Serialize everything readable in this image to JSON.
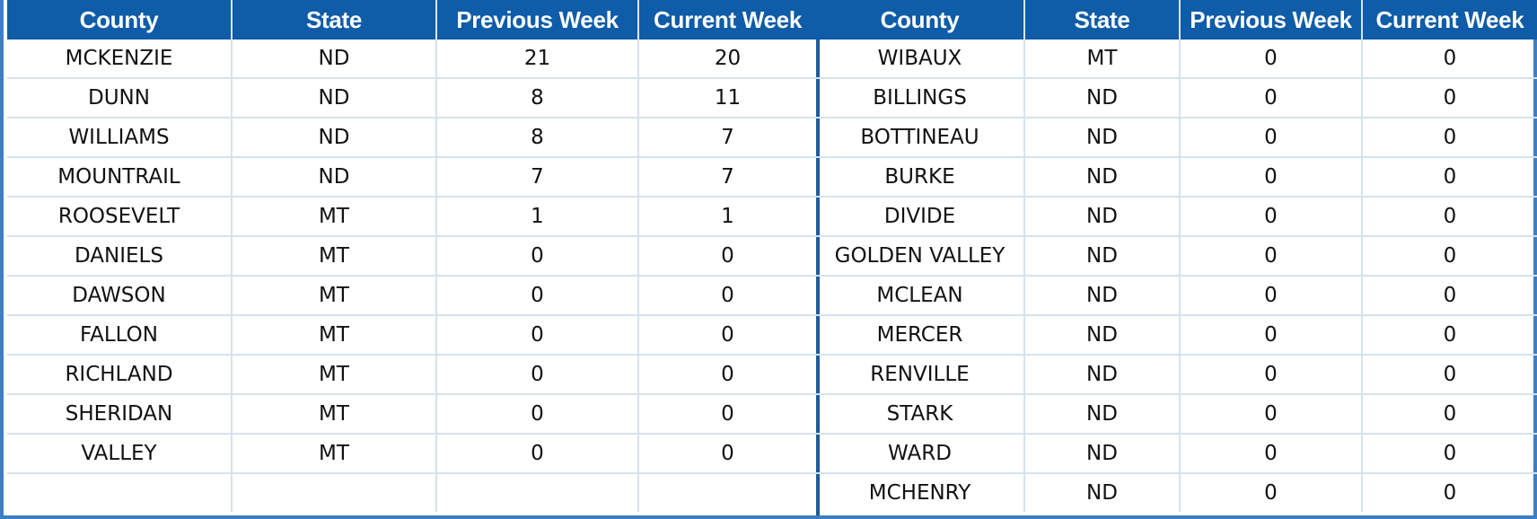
{
  "headers": {
    "county": "County",
    "state": "State",
    "previous_week": "Previous Week",
    "current_week": "Current Week"
  },
  "left_table": {
    "rows": [
      {
        "county": "MCKENZIE",
        "state": "ND",
        "previous_week": "21",
        "current_week": "20"
      },
      {
        "county": "DUNN",
        "state": "ND",
        "previous_week": "8",
        "current_week": "11"
      },
      {
        "county": "WILLIAMS",
        "state": "ND",
        "previous_week": "8",
        "current_week": "7"
      },
      {
        "county": "MOUNTRAIL",
        "state": "ND",
        "previous_week": "7",
        "current_week": "7"
      },
      {
        "county": "ROOSEVELT",
        "state": "MT",
        "previous_week": "1",
        "current_week": "1"
      },
      {
        "county": "DANIELS",
        "state": "MT",
        "previous_week": "0",
        "current_week": "0"
      },
      {
        "county": "DAWSON",
        "state": "MT",
        "previous_week": "0",
        "current_week": "0"
      },
      {
        "county": "FALLON",
        "state": "MT",
        "previous_week": "0",
        "current_week": "0"
      },
      {
        "county": "RICHLAND",
        "state": "MT",
        "previous_week": "0",
        "current_week": "0"
      },
      {
        "county": "SHERIDAN",
        "state": "MT",
        "previous_week": "0",
        "current_week": "0"
      },
      {
        "county": "VALLEY",
        "state": "MT",
        "previous_week": "0",
        "current_week": "0"
      },
      {
        "county": "",
        "state": "",
        "previous_week": "",
        "current_week": ""
      }
    ]
  },
  "right_table": {
    "rows": [
      {
        "county": "WIBAUX",
        "state": "MT",
        "previous_week": "0",
        "current_week": "0"
      },
      {
        "county": "BILLINGS",
        "state": "ND",
        "previous_week": "0",
        "current_week": "0"
      },
      {
        "county": "BOTTINEAU",
        "state": "ND",
        "previous_week": "0",
        "current_week": "0"
      },
      {
        "county": "BURKE",
        "state": "ND",
        "previous_week": "0",
        "current_week": "0"
      },
      {
        "county": "DIVIDE",
        "state": "ND",
        "previous_week": "0",
        "current_week": "0"
      },
      {
        "county": "GOLDEN VALLEY",
        "state": "ND",
        "previous_week": "0",
        "current_week": "0"
      },
      {
        "county": "MCLEAN",
        "state": "ND",
        "previous_week": "0",
        "current_week": "0"
      },
      {
        "county": "MERCER",
        "state": "ND",
        "previous_week": "0",
        "current_week": "0"
      },
      {
        "county": "RENVILLE",
        "state": "ND",
        "previous_week": "0",
        "current_week": "0"
      },
      {
        "county": "STARK",
        "state": "ND",
        "previous_week": "0",
        "current_week": "0"
      },
      {
        "county": "WARD",
        "state": "ND",
        "previous_week": "0",
        "current_week": "0"
      },
      {
        "county": "MCHENRY",
        "state": "ND",
        "previous_week": "0",
        "current_week": "0"
      }
    ]
  },
  "colors": {
    "header_background": "#0f5ca8",
    "header_text": "#ffffff",
    "frame_border": "#3d7fc1",
    "divider": "#1e5a9a",
    "grid_line": "#d4e3ee"
  }
}
